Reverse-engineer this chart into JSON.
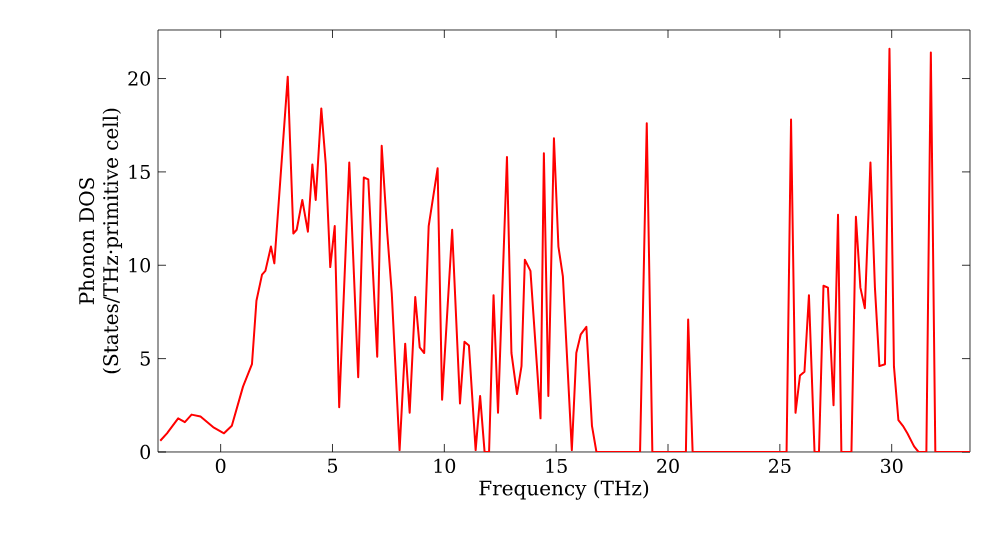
{
  "chart_data": {
    "type": "line",
    "xlabel": "Frequency (THz)",
    "ylabel": "Phonon DOS\n(States/THz·primitive cell)",
    "xlim": [
      -2.8,
      33.5
    ],
    "ylim": [
      0,
      22.6
    ],
    "xticks": [
      0,
      5,
      10,
      15,
      20,
      25,
      30
    ],
    "yticks": [
      0,
      5,
      10,
      15,
      20
    ],
    "marker": "none",
    "line_style": "solid",
    "series": [
      {
        "color": "#ff0000",
        "x": [
          -2.7,
          -2.4,
          -1.9,
          -1.6,
          -1.3,
          -0.9,
          -0.3,
          0.15,
          0.5,
          1.0,
          1.4,
          1.6,
          1.85,
          2.0,
          2.25,
          2.4,
          3.0,
          3.25,
          3.4,
          3.65,
          3.9,
          4.1,
          4.25,
          4.5,
          4.7,
          4.9,
          5.1,
          5.3,
          5.75,
          6.15,
          6.4,
          6.6,
          7.0,
          7.2,
          7.45,
          7.65,
          8.0,
          8.25,
          8.45,
          8.7,
          8.9,
          9.1,
          9.3,
          9.7,
          9.9,
          10.35,
          10.7,
          10.9,
          11.1,
          11.4,
          11.6,
          11.8,
          12.0,
          12.2,
          12.4,
          12.8,
          13.0,
          13.25,
          13.45,
          13.6,
          13.85,
          14.3,
          14.45,
          14.65,
          14.9,
          15.1,
          15.3,
          15.7,
          15.9,
          16.1,
          16.35,
          16.6,
          16.8,
          18.75,
          19.05,
          19.3,
          20.8,
          20.9,
          21.1,
          25.3,
          25.5,
          25.7,
          25.9,
          26.1,
          26.3,
          26.55,
          26.75,
          26.95,
          27.15,
          27.4,
          27.6,
          27.75,
          28.2,
          28.4,
          28.6,
          28.8,
          29.05,
          29.25,
          29.45,
          29.7,
          29.9,
          30.1,
          30.3,
          30.5,
          30.7,
          31.0,
          31.2,
          31.55,
          31.75,
          31.95,
          33.5
        ],
        "values": [
          0.6,
          1.0,
          1.8,
          1.6,
          2.0,
          1.9,
          1.3,
          1.0,
          1.4,
          3.5,
          4.7,
          8.1,
          9.5,
          9.7,
          11.0,
          10.1,
          20.1,
          11.7,
          11.9,
          13.5,
          11.8,
          15.4,
          13.5,
          18.4,
          15.4,
          9.9,
          12.1,
          2.4,
          15.5,
          4.0,
          14.7,
          14.6,
          5.1,
          16.4,
          11.7,
          8.5,
          0.1,
          5.8,
          2.1,
          8.3,
          5.6,
          5.3,
          12.1,
          15.2,
          2.8,
          11.9,
          2.6,
          5.9,
          5.7,
          0.1,
          3.0,
          0,
          0,
          8.4,
          2.1,
          15.8,
          5.3,
          3.1,
          4.6,
          10.3,
          9.7,
          1.8,
          16.0,
          3.0,
          16.8,
          11.0,
          9.4,
          0.1,
          5.3,
          6.3,
          6.7,
          1.4,
          0,
          0,
          17.6,
          0,
          0,
          7.1,
          0,
          0,
          17.8,
          2.1,
          4.1,
          4.3,
          8.4,
          0,
          0,
          8.9,
          8.8,
          2.5,
          12.7,
          0,
          0,
          12.6,
          8.8,
          7.7,
          15.5,
          8.8,
          4.6,
          4.7,
          21.6,
          4.6,
          1.7,
          1.4,
          1.0,
          0.3,
          0,
          0,
          21.4,
          0,
          0
        ]
      }
    ]
  }
}
